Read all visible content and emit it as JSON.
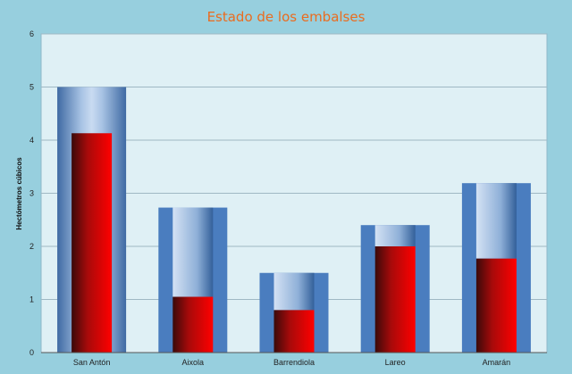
{
  "chart_data": {
    "type": "bar",
    "title": "Estado de los embalses",
    "xlabel": "",
    "ylabel": "Hectómetros cúbicos",
    "ylim": [
      0,
      6
    ],
    "yticks": [
      0,
      1,
      2,
      3,
      4,
      5,
      6
    ],
    "grid": true,
    "legend": "none",
    "categories": [
      "San Antón",
      "Aixola",
      "Barrendiola",
      "Lareo",
      "Amarán"
    ],
    "series": [
      {
        "values": [
          5.0,
          2.73,
          1.5,
          2.4,
          3.19
        ]
      },
      {
        "values": [
          4.13,
          1.05,
          0.8,
          2.0,
          1.77
        ]
      }
    ],
    "colors": {
      "capacity_bar": "#4a7dbf",
      "current_fill": "#ff0000",
      "plot_background": "#dff0f5",
      "outer_background": "#97cfde",
      "title": "#ea6c1f"
    }
  }
}
